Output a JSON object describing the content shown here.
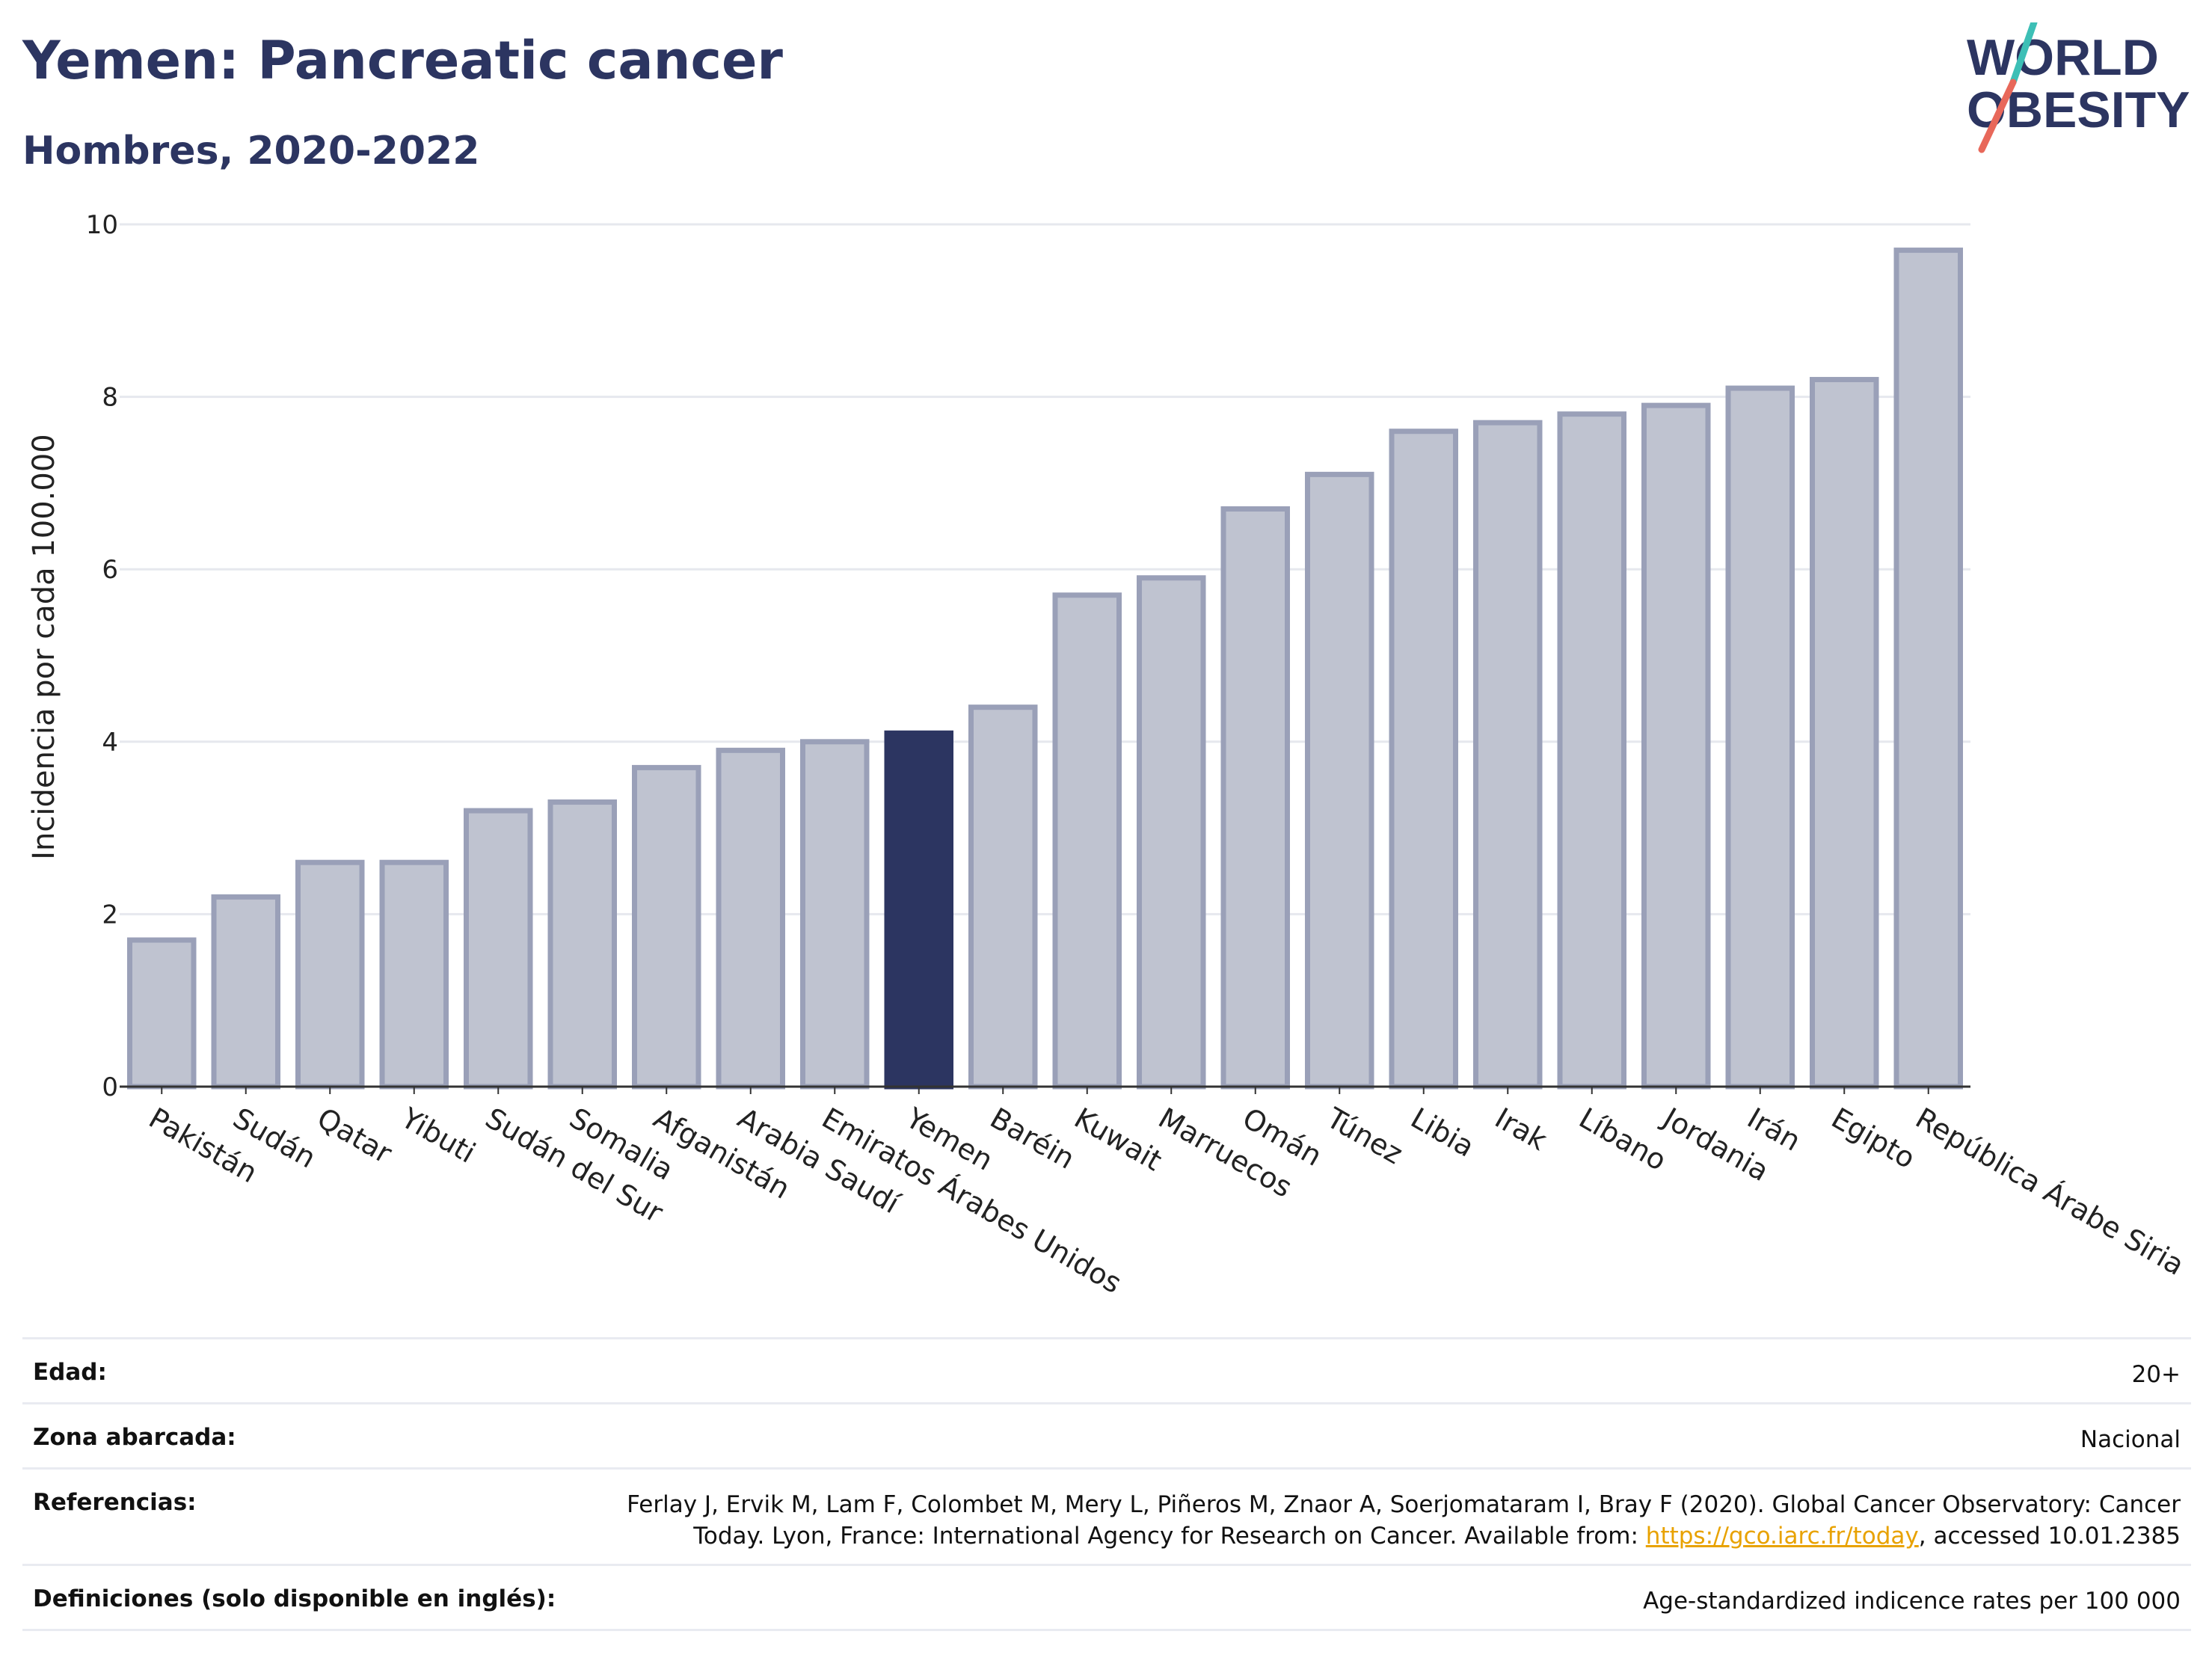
{
  "header": {
    "title": "Yemen: Pancreatic cancer",
    "subtitle": "Hombres, 2020-2022"
  },
  "logo": {
    "line1": "WORLD",
    "line2": "OBESITY",
    "accent_colors": [
      "#3dbfb6",
      "#e8685a"
    ]
  },
  "colors": {
    "highlight": "#2c3561",
    "bar_fill": "#bfc3d0",
    "bar_stroke": "#9aa0b8",
    "link": "#e8a200"
  },
  "chart_data": {
    "type": "bar",
    "highlight_category": "Yemen",
    "categories": [
      "Pakistán",
      "Sudán",
      "Qatar",
      "Yibuti",
      "Sudán del Sur",
      "Somalia",
      "Afganistán",
      "Arabia Saudí",
      "Emiratos Árabes Unidos",
      "Yemen",
      "Baréin",
      "Kuwait",
      "Marruecos",
      "Omán",
      "Túnez",
      "Libia",
      "Irak",
      "Líbano",
      "Jordania",
      "Irán",
      "Egipto",
      "República Árabe Siria"
    ],
    "values": [
      1.7,
      2.2,
      2.6,
      2.6,
      3.2,
      3.3,
      3.7,
      3.9,
      4.0,
      4.1,
      4.4,
      5.7,
      5.9,
      6.7,
      7.1,
      7.6,
      7.7,
      7.8,
      7.9,
      8.1,
      8.2,
      9.7
    ],
    "ylabel": "Incidencia por cada 100.000",
    "xlabel": "",
    "ylim": [
      0,
      10
    ],
    "yticks": [
      0,
      2,
      4,
      6,
      8,
      10
    ],
    "grid": true
  },
  "info": {
    "age_label": "Edad:",
    "age_value": "20+",
    "zone_label": "Zona abarcada:",
    "zone_value": "Nacional",
    "ref_label": "Referencias:",
    "ref_line1": "Ferlay J, Ervik M, Lam F, Colombet M, Mery L, Piñeros M, Znaor A, Soerjomataram I, Bray F (2020). Global Cancer Observatory: Cancer",
    "ref_line2_pre": "Today. Lyon, France: International Agency for Research on Cancer. Available from: ",
    "ref_link": "https://gco.iarc.fr/today",
    "ref_line2_post": ", accessed 10.01.2385",
    "def_label": "Definiciones (solo disponible en inglés):",
    "def_value": "Age-standardized indicence rates per 100 000"
  }
}
